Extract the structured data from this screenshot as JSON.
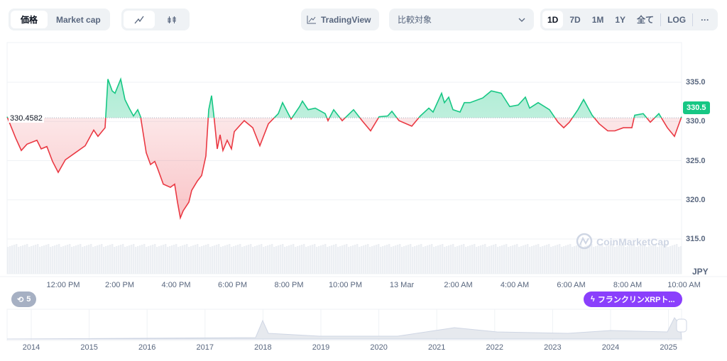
{
  "toolbar": {
    "price_tab": "価格",
    "marketcap_tab": "Market cap",
    "tradingview": "TradingView",
    "compare_placeholder": "比較対象",
    "ranges": [
      "1D",
      "7D",
      "1M",
      "1Y",
      "全て"
    ],
    "log": "LOG",
    "more": "···"
  },
  "chart": {
    "current_price_label": "330.5",
    "open_price_label": "330.4582",
    "currency": "JPY",
    "watermark": "CoinMarketCap",
    "history_badge": "5",
    "event_badge": "フランクリンXRPト...",
    "colors": {
      "up": "#16c784",
      "down": "#ea3943"
    }
  },
  "chart_data": {
    "type": "area",
    "currency": "JPY",
    "baseline": 330.4582,
    "ylim": [
      313,
      338
    ],
    "y_ticks": [
      "335.0",
      "330.0",
      "325.0",
      "320.0",
      "315.0"
    ],
    "x_ticks": [
      "12:00 PM",
      "2:00 PM",
      "4:00 PM",
      "6:00 PM",
      "8:00 PM",
      "10:00 PM",
      "13 Mar",
      "2:00 AM",
      "4:00 AM",
      "6:00 AM",
      "8:00 AM",
      "10:00 AM"
    ],
    "x_unit": "hours since ~10:00 AM 12 Mar",
    "points": [
      [
        0,
        330.6
      ],
      [
        0.3,
        327.9
      ],
      [
        0.5,
        326.3
      ],
      [
        0.7,
        327.1
      ],
      [
        1.05,
        327.6
      ],
      [
        1.2,
        326.5
      ],
      [
        1.4,
        326.8
      ],
      [
        1.6,
        324.9
      ],
      [
        1.8,
        323.5
      ],
      [
        2.05,
        325.1
      ],
      [
        2.4,
        326.0
      ],
      [
        2.75,
        326.9
      ],
      [
        3.05,
        328.9
      ],
      [
        3.2,
        328.1
      ],
      [
        3.45,
        329.2
      ],
      [
        3.55,
        335.4
      ],
      [
        3.7,
        333.9
      ],
      [
        3.8,
        333.6
      ],
      [
        4.0,
        335.4
      ],
      [
        4.15,
        332.8
      ],
      [
        4.3,
        331.7
      ],
      [
        4.45,
        330.7
      ],
      [
        4.6,
        331.5
      ],
      [
        4.7,
        330.6
      ],
      [
        4.8,
        328.3
      ],
      [
        4.9,
        326.0
      ],
      [
        5.05,
        324.5
      ],
      [
        5.2,
        324.9
      ],
      [
        5.3,
        324.0
      ],
      [
        5.5,
        322.0
      ],
      [
        5.75,
        321.6
      ],
      [
        5.9,
        322.0
      ],
      [
        6.0,
        319.7
      ],
      [
        6.1,
        317.7
      ],
      [
        6.2,
        318.6
      ],
      [
        6.4,
        319.7
      ],
      [
        6.5,
        321.2
      ],
      [
        6.7,
        322.4
      ],
      [
        6.85,
        323.1
      ],
      [
        7.0,
        325.6
      ],
      [
        7.1,
        331.5
      ],
      [
        7.2,
        333.3
      ],
      [
        7.3,
        330.1
      ],
      [
        7.4,
        326.5
      ],
      [
        7.5,
        328.3
      ],
      [
        7.6,
        326.3
      ],
      [
        7.75,
        327.6
      ],
      [
        7.9,
        326.5
      ],
      [
        8.0,
        328.7
      ],
      [
        8.35,
        330.1
      ],
      [
        8.65,
        329.2
      ],
      [
        8.9,
        326.9
      ],
      [
        9.2,
        329.7
      ],
      [
        9.55,
        331.0
      ],
      [
        9.7,
        332.4
      ],
      [
        10.0,
        330.3
      ],
      [
        10.3,
        331.9
      ],
      [
        10.4,
        332.6
      ],
      [
        10.6,
        331.5
      ],
      [
        10.85,
        331.7
      ],
      [
        11.2,
        331.0
      ],
      [
        11.3,
        330.1
      ],
      [
        11.5,
        331.5
      ],
      [
        11.8,
        330.1
      ],
      [
        12.2,
        331.5
      ],
      [
        12.5,
        330.1
      ],
      [
        12.8,
        328.8
      ],
      [
        13.1,
        330.6
      ],
      [
        13.4,
        330.7
      ],
      [
        13.55,
        331.3
      ],
      [
        13.8,
        330.1
      ],
      [
        14.25,
        329.4
      ],
      [
        14.55,
        330.7
      ],
      [
        14.85,
        331.7
      ],
      [
        15.0,
        331.2
      ],
      [
        15.3,
        333.6
      ],
      [
        15.4,
        332.4
      ],
      [
        15.55,
        333.1
      ],
      [
        15.7,
        331.5
      ],
      [
        15.95,
        331.2
      ],
      [
        16.1,
        332.4
      ],
      [
        16.3,
        332.4
      ],
      [
        16.75,
        333.0
      ],
      [
        17.05,
        333.9
      ],
      [
        17.4,
        333.6
      ],
      [
        17.7,
        331.9
      ],
      [
        18.0,
        332.1
      ],
      [
        18.25,
        333.1
      ],
      [
        18.4,
        331.7
      ],
      [
        18.7,
        332.4
      ],
      [
        19.1,
        331.5
      ],
      [
        19.4,
        329.9
      ],
      [
        19.6,
        329.2
      ],
      [
        19.8,
        329.9
      ],
      [
        20.1,
        331.5
      ],
      [
        20.3,
        332.8
      ],
      [
        20.6,
        330.8
      ],
      [
        20.85,
        329.7
      ],
      [
        21.15,
        328.8
      ],
      [
        21.4,
        328.8
      ],
      [
        21.7,
        329.2
      ],
      [
        22.0,
        329.2
      ],
      [
        22.1,
        330.8
      ],
      [
        22.4,
        331.0
      ],
      [
        22.65,
        329.9
      ],
      [
        22.95,
        331.0
      ],
      [
        23.25,
        329.2
      ],
      [
        23.5,
        328.1
      ],
      [
        23.75,
        330.6
      ]
    ]
  },
  "navigator": {
    "years": [
      "2014",
      "2015",
      "2016",
      "2017",
      "2018",
      "2019",
      "2020",
      "2021",
      "2022",
      "2023",
      "2024",
      "2025"
    ]
  }
}
